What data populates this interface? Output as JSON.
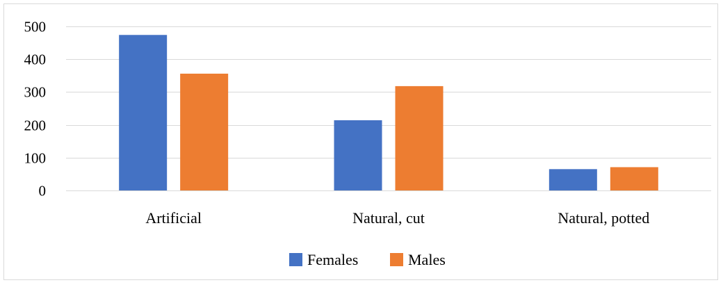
{
  "chart_data": {
    "type": "bar",
    "title": "",
    "xlabel": "",
    "ylabel": "",
    "categories": [
      "Artificial",
      "Natural, cut",
      "Natural, potted"
    ],
    "series": [
      {
        "name": "Females",
        "color": "#4472c4",
        "values": [
          474,
          214,
          65
        ]
      },
      {
        "name": "Males",
        "color": "#ed7d31",
        "values": [
          356,
          318,
          71
        ]
      }
    ],
    "ylim": [
      0,
      500
    ],
    "yticks": [
      0,
      100,
      200,
      300,
      400,
      500
    ],
    "grid": true,
    "legend_position": "bottom"
  }
}
